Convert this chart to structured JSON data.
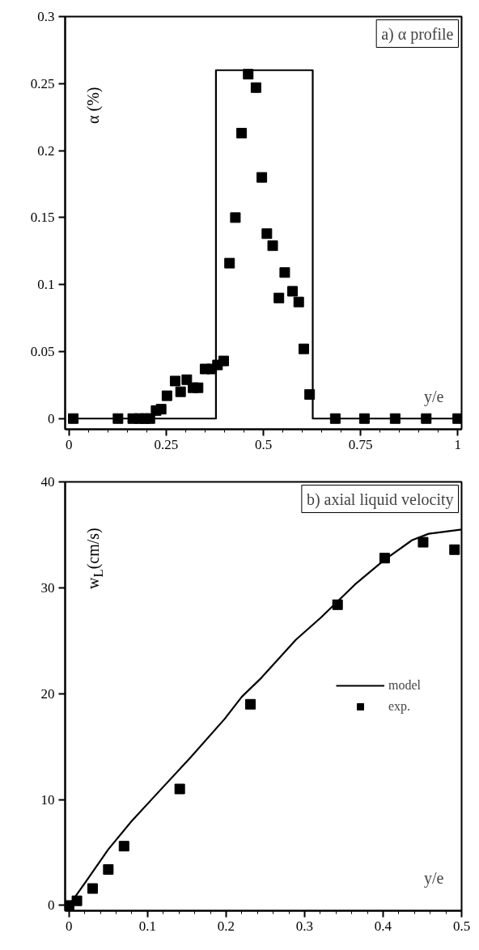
{
  "chart_data": [
    {
      "type": "scatter",
      "title": "a) α profile",
      "xlabel": "y/e",
      "ylabel": "α (%)",
      "xlim": [
        -0.01,
        1.01
      ],
      "ylim": [
        -0.008,
        0.3
      ],
      "xticks": [
        0,
        0.25,
        0.5,
        0.75,
        1
      ],
      "yticks": [
        0,
        0.05,
        0.1,
        0.15,
        0.2,
        0.25,
        0.3
      ],
      "grid": false,
      "legend": false,
      "series": [
        {
          "type": "line",
          "marker": "none",
          "color": "#000000",
          "x": [
            0,
            0.378,
            0.378,
            0.627,
            0.627,
            1
          ],
          "values": [
            0,
            0,
            0.26,
            0.26,
            0,
            0
          ]
        },
        {
          "marker": "square",
          "color": "#000000",
          "x": [
            0.011,
            0.126,
            0.164,
            0.181,
            0.195,
            0.208,
            0.224,
            0.237,
            0.252,
            0.273,
            0.287,
            0.303,
            0.319,
            0.332,
            0.35,
            0.367,
            0.382,
            0.398,
            0.413,
            0.428,
            0.444,
            0.461,
            0.481,
            0.496,
            0.509,
            0.524,
            0.54,
            0.555,
            0.575,
            0.591,
            0.604,
            0.619,
            0.685,
            0.76,
            0.839,
            0.919,
            1.0
          ],
          "values": [
            0,
            0,
            0,
            0,
            0,
            0,
            0.006,
            0.007,
            0.017,
            0.028,
            0.02,
            0.029,
            0.023,
            0.023,
            0.037,
            0.037,
            0.04,
            0.043,
            0.116,
            0.15,
            0.213,
            0.257,
            0.247,
            0.18,
            0.138,
            0.129,
            0.09,
            0.109,
            0.095,
            0.087,
            0.052,
            0.018,
            0,
            0,
            0,
            0,
            0
          ]
        }
      ]
    },
    {
      "type": "scatter",
      "title": "b) axial liquid velocity",
      "xlabel": "y/e",
      "ylabel": "w$_{L}$(cm/s)",
      "xlim": [
        -0.005,
        0.5
      ],
      "ylim": [
        -0.5,
        40
      ],
      "xticks": [
        0,
        0.1,
        0.2,
        0.3,
        0.4,
        0.5
      ],
      "yticks": [
        0,
        10,
        20,
        30,
        40
      ],
      "grid": false,
      "legend": "right",
      "series": [
        {
          "type": "line",
          "marker": "none",
          "name": "model",
          "color": "#000000",
          "x": [
            0,
            0.021,
            0.05,
            0.079,
            0.115,
            0.155,
            0.198,
            0.22,
            0.245,
            0.289,
            0.321,
            0.364,
            0.401,
            0.437,
            0.458,
            0.5
          ],
          "values": [
            0,
            2.2,
            5.3,
            7.9,
            10.8,
            14.0,
            17.6,
            19.7,
            21.5,
            25.1,
            27.2,
            30.3,
            32.6,
            34.5,
            35.1,
            35.5
          ]
        },
        {
          "marker": "square",
          "name": "exp.",
          "color": "#000000",
          "x": [
            0,
            0.01,
            0.03,
            0.05,
            0.07,
            0.141,
            0.231,
            0.342,
            0.402,
            0.451,
            0.491
          ],
          "values": [
            0,
            0.44,
            1.6,
            3.4,
            5.6,
            11.0,
            19.0,
            28.4,
            32.8,
            34.3,
            33.6
          ]
        }
      ]
    }
  ]
}
